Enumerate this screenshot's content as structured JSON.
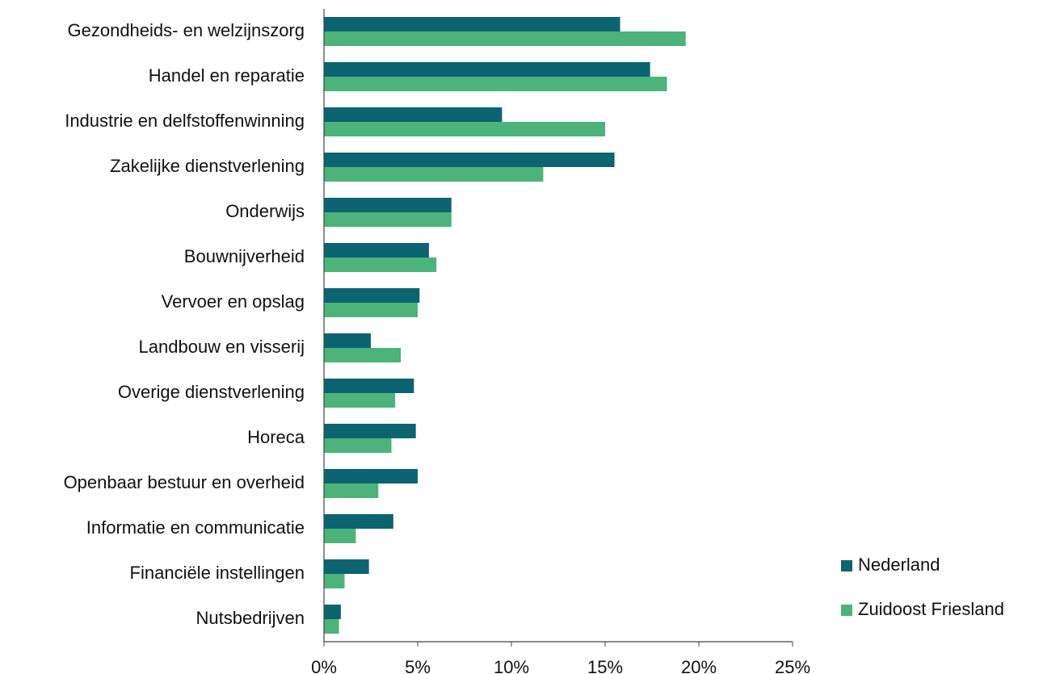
{
  "chart_data": {
    "type": "hbar",
    "categories": [
      "Gezondheids- en welzijnszorg",
      "Handel en reparatie",
      "Industrie en delfstoffenwinning",
      "Zakelijke dienstverlening",
      "Onderwijs",
      "Bouwnijverheid",
      "Vervoer en opslag",
      "Landbouw en visserij",
      "Overige dienstverlening",
      "Horeca",
      "Openbaar bestuur en overheid",
      "Informatie en communicatie",
      "Financiële instellingen",
      "Nutsbedrijven"
    ],
    "series": [
      {
        "name": "Nederland",
        "color": "#0b6470",
        "values": [
          15.8,
          17.4,
          9.5,
          15.5,
          6.8,
          5.6,
          5.1,
          2.5,
          4.8,
          4.9,
          5.0,
          3.7,
          2.4,
          0.9
        ]
      },
      {
        "name": "Zuidoost Friesland",
        "color": "#4cb37a",
        "values": [
          19.3,
          18.3,
          15.0,
          11.7,
          6.8,
          6.0,
          5.0,
          4.1,
          3.8,
          3.6,
          2.9,
          1.7,
          1.1,
          0.8
        ]
      }
    ],
    "xlim": [
      0,
      25
    ],
    "xticks": [
      {
        "value": 0,
        "label": "0%"
      },
      {
        "value": 5,
        "label": "5%"
      },
      {
        "value": 10,
        "label": "10%"
      },
      {
        "value": 15,
        "label": "15%"
      },
      {
        "value": 20,
        "label": "20%"
      },
      {
        "value": 25,
        "label": "25%"
      }
    ],
    "grid": false,
    "legend": "right"
  }
}
